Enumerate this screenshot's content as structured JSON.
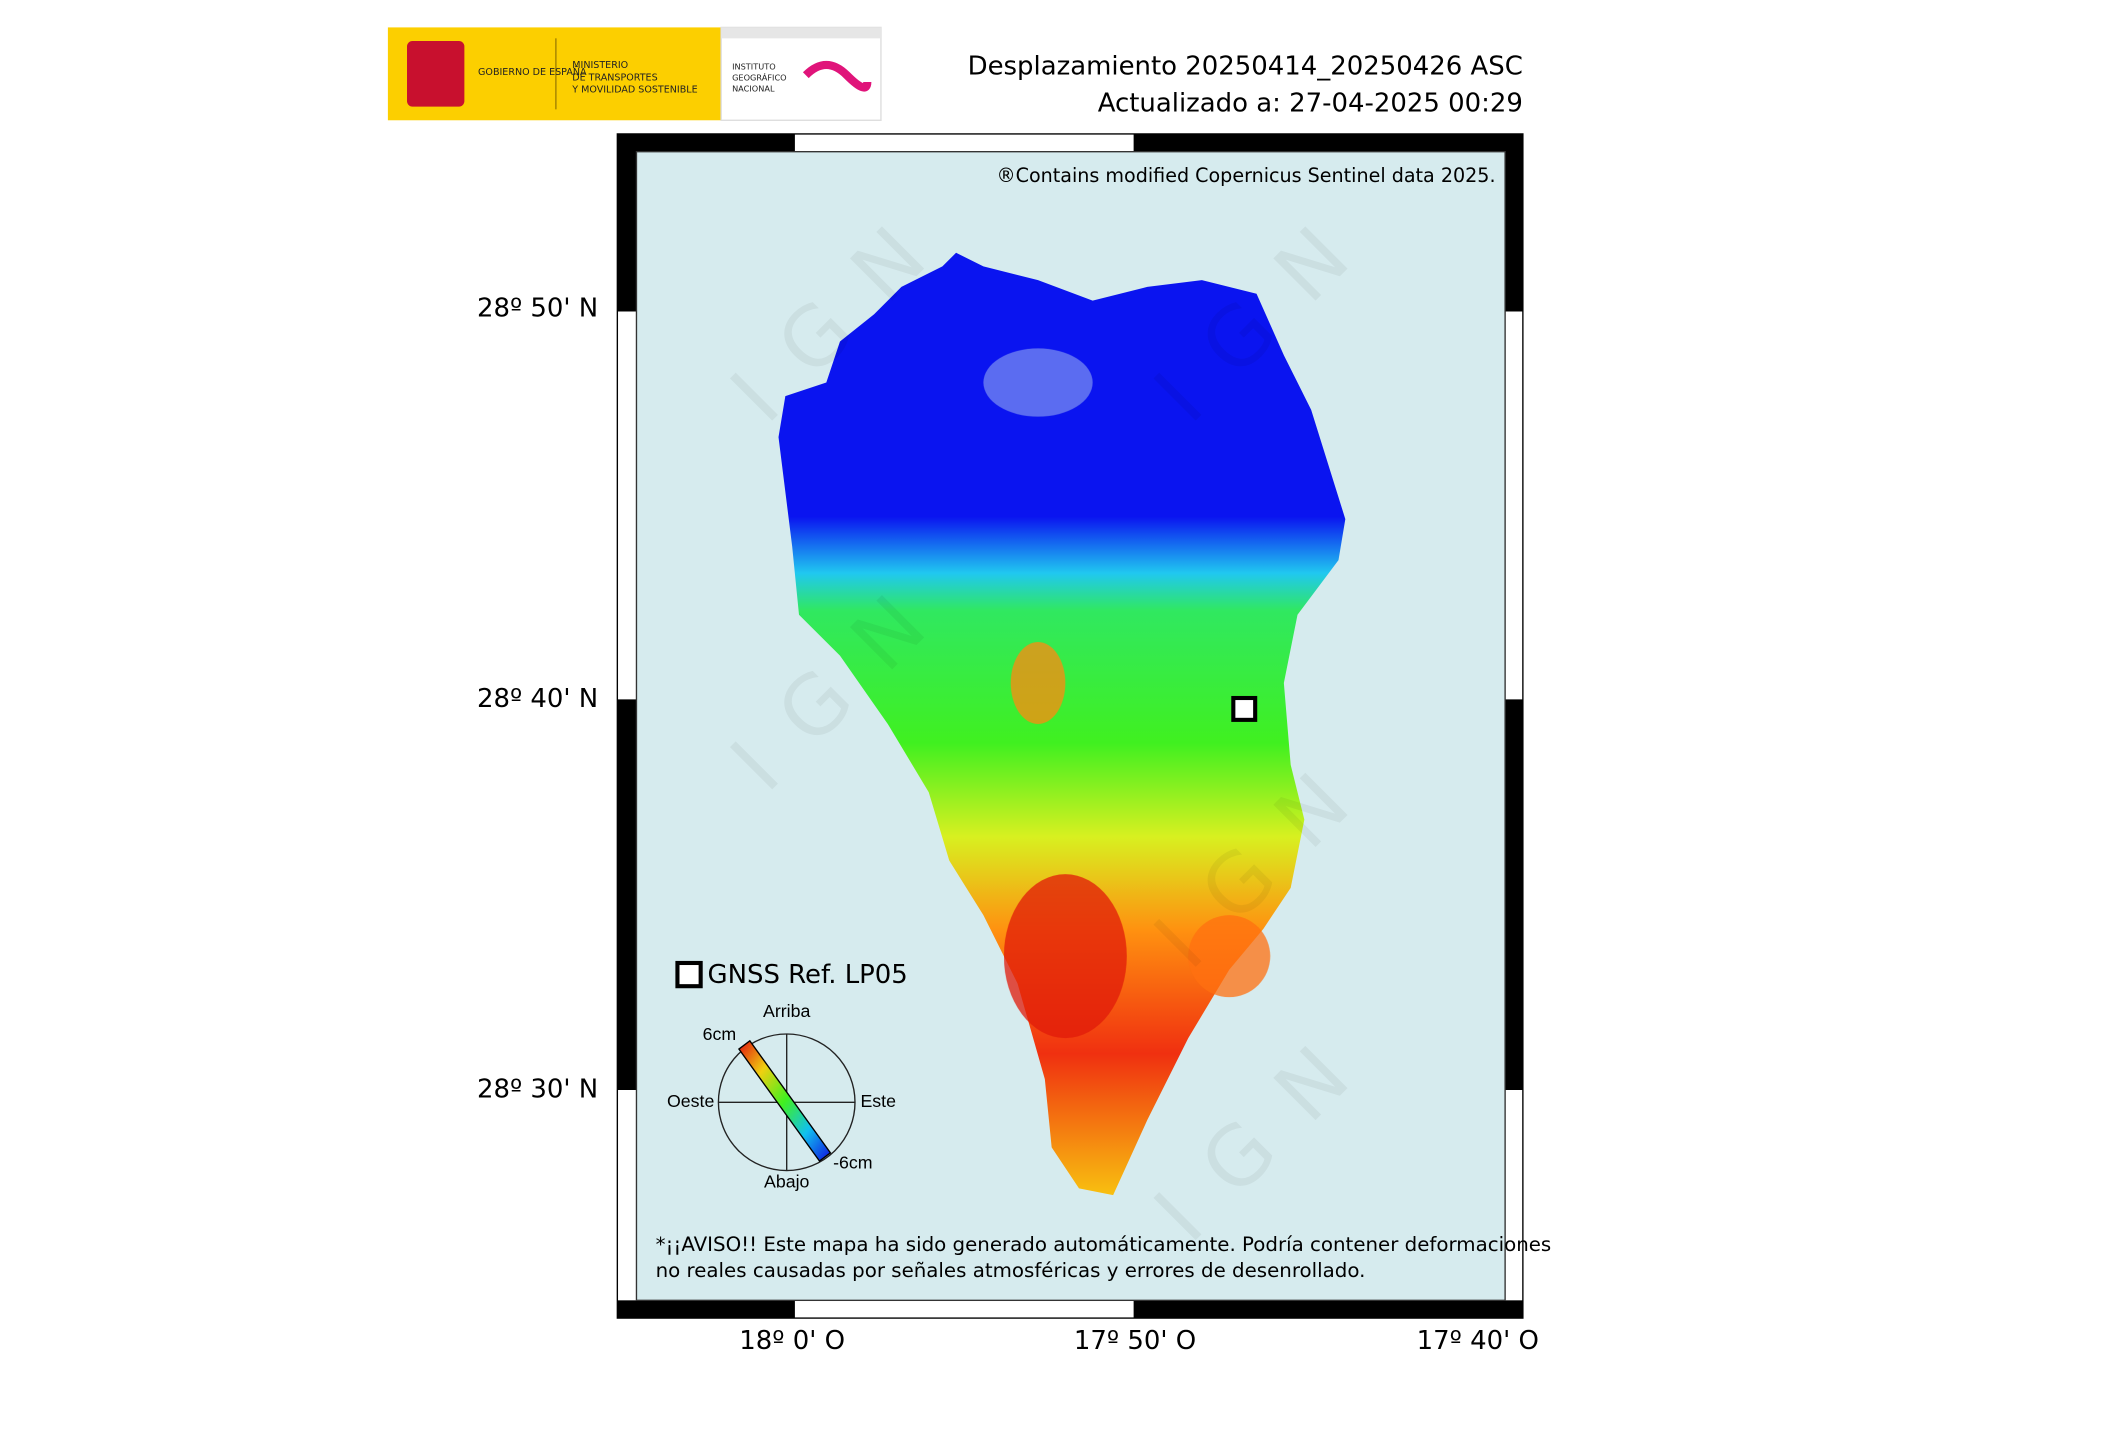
{
  "header": {
    "logo_government": "GOBIERNO DE ESPAÑA",
    "logo_ministry_1": "MINISTERIO",
    "logo_ministry_2": "DE TRANSPORTES",
    "logo_ministry_3": "Y MOVILIDAD SOSTENIBLE",
    "logo_institute_1": "INSTITUTO",
    "logo_institute_2": "GEOGRÁFICO",
    "logo_institute_3": "NACIONAL",
    "title": "Desplazamiento 20250414_20250426 ASC",
    "updated": "Actualizado a: 27-04-2025 00:29"
  },
  "map": {
    "copyright": "®Contains modified Copernicus Sentinel data 2025.",
    "watermark": "IGN",
    "lat_labels": [
      "28º 50' N",
      "28º 40' N",
      "28º 30' N"
    ],
    "lon_labels": [
      "18º 0' O",
      "17º 50' O",
      "17º 40' O"
    ],
    "warning": [
      "*¡¡AVISO!! Este mapa ha sido generado automáticamente. Podría contener deformaciones",
      "no reales causadas por señales atmosféricas y errores de desenrollado."
    ]
  },
  "legend": {
    "gnss": "GNSS Ref. LP05",
    "up": "Arriba",
    "down": "Abajo",
    "west": "Oeste",
    "east": "Este",
    "max": "6cm",
    "min": "-6cm"
  }
}
